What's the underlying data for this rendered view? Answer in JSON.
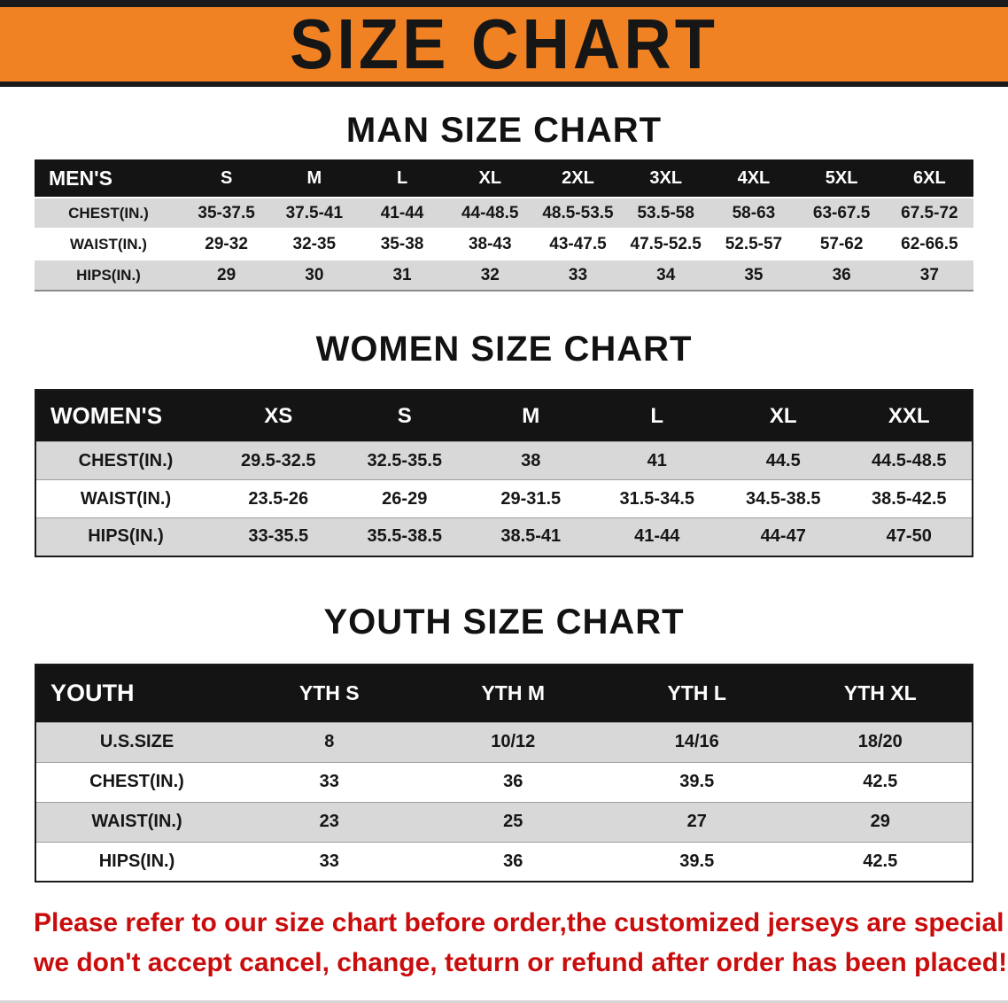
{
  "banner": {
    "title": "SIZE CHART"
  },
  "sections": [
    {
      "heading": "MAN SIZE CHART",
      "table": {
        "header": [
          "MEN'S",
          "S",
          "M",
          "L",
          "XL",
          "2XL",
          "3XL",
          "4XL",
          "5XL",
          "6XL"
        ],
        "rows": [
          [
            "CHEST(IN.)",
            "35-37.5",
            "37.5-41",
            "41-44",
            "44-48.5",
            "48.5-53.5",
            "53.5-58",
            "58-63",
            "63-67.5",
            "67.5-72"
          ],
          [
            "WAIST(IN.)",
            "29-32",
            "32-35",
            "35-38",
            "38-43",
            "43-47.5",
            "47.5-52.5",
            "52.5-57",
            "57-62",
            "62-66.5"
          ],
          [
            "HIPS(IN.)",
            "29",
            "30",
            "31",
            "32",
            "33",
            "34",
            "35",
            "36",
            "37"
          ]
        ]
      }
    },
    {
      "heading": "WOMEN SIZE CHART",
      "table": {
        "header": [
          "WOMEN'S",
          "XS",
          "S",
          "M",
          "L",
          "XL",
          "XXL"
        ],
        "rows": [
          [
            "CHEST(IN.)",
            "29.5-32.5",
            "32.5-35.5",
            "38",
            "41",
            "44.5",
            "44.5-48.5"
          ],
          [
            "WAIST(IN.)",
            "23.5-26",
            "26-29",
            "29-31.5",
            "31.5-34.5",
            "34.5-38.5",
            "38.5-42.5"
          ],
          [
            "HIPS(IN.)",
            "33-35.5",
            "35.5-38.5",
            "38.5-41",
            "41-44",
            "44-47",
            "47-50"
          ]
        ]
      }
    },
    {
      "heading": "YOUTH SIZE CHART",
      "table": {
        "header": [
          "YOUTH",
          "YTH S",
          "YTH M",
          "YTH L",
          "YTH XL"
        ],
        "rows": [
          [
            "U.S.SIZE",
            "8",
            "10/12",
            "14/16",
            "18/20"
          ],
          [
            "CHEST(IN.)",
            "33",
            "36",
            "39.5",
            "42.5"
          ],
          [
            "WAIST(IN.)",
            "23",
            "25",
            "27",
            "29"
          ],
          [
            "HIPS(IN.)",
            "33",
            "36",
            "39.5",
            "42.5"
          ]
        ]
      }
    }
  ],
  "footer": {
    "line1": "Please refer to our size chart before order,the customized jerseys are special products,",
    "line2": "we don't accept cancel, change, teturn or refund after order has been placed!"
  },
  "colors": {
    "banner_orange": "#f08224",
    "header_black": "#141414",
    "row_gray": "#d8d8d8",
    "disclaimer_red": "#c90d0d"
  }
}
